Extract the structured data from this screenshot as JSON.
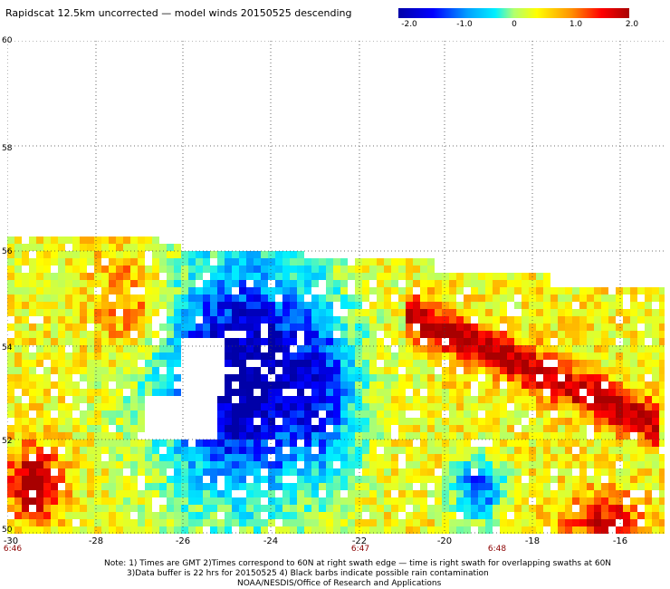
{
  "title": "Rapidscat 12.5km uncorrected — model winds 20150525 descending",
  "colorbar": {
    "labels": [
      "-2.0",
      "-1.0",
      "0",
      "1.0",
      "2.0"
    ],
    "stops": [
      "#0000a8",
      "#0000ff",
      "#00a0ff",
      "#00f0ff",
      "#b0ff70",
      "#ffff00",
      "#ff9000",
      "#ff0000",
      "#a80000"
    ]
  },
  "map": {
    "lat_ticks": [
      "60",
      "58",
      "56",
      "54",
      "52",
      "50"
    ],
    "lon_ticks": [
      "-30",
      "-28",
      "-26",
      "-24",
      "-22",
      "-20",
      "-18",
      "-16"
    ],
    "time_ticks": [
      "6:46",
      "6:47",
      "6:48"
    ]
  },
  "notes": {
    "line1": "Note: 1) Times are GMT 2)Times correspond to 60N at right swath edge — time is right swath for overlapping swaths at 60N",
    "line2": "3)Data buffer is 22 hrs for 20150525 4) Black barbs indicate possible rain contamination",
    "line3": "NOAA/NESDIS/Office of Research and Applications"
  }
}
